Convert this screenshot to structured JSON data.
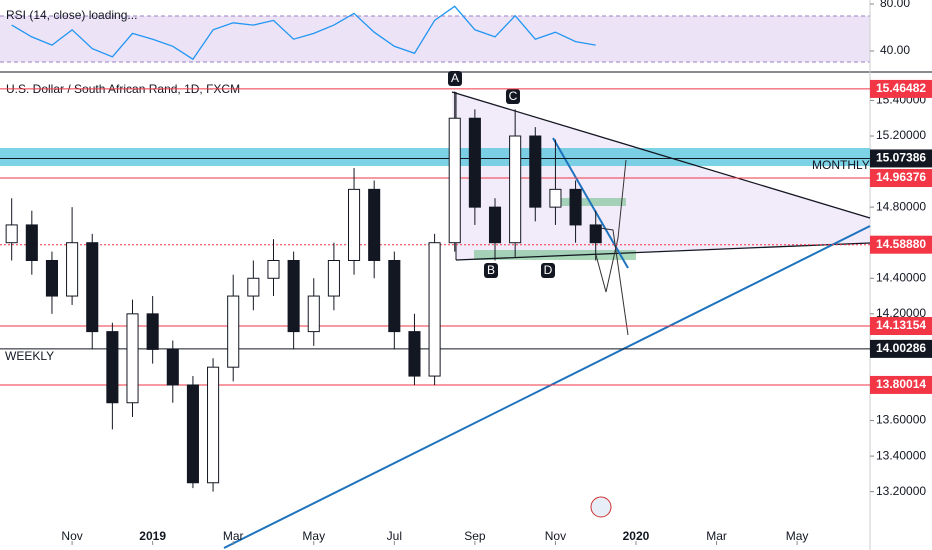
{
  "chart_data": {
    "type": "candlestick",
    "title": "U.S. Dollar / South African Rand, 1D, FXCM",
    "x": [
      -1.5,
      -1,
      -0.5,
      0,
      0.5,
      1,
      1.5,
      2,
      2.5,
      3,
      3.5,
      4,
      4.5,
      5,
      5.5,
      6,
      6.5,
      7,
      7.5,
      8,
      8.5,
      9,
      9.5,
      10,
      10.5,
      11,
      11.5,
      12,
      12.5,
      13
    ],
    "open": [
      14.6,
      14.7,
      14.5,
      14.3,
      14.6,
      14.1,
      13.7,
      14.2,
      14.0,
      13.8,
      13.25,
      13.9,
      14.3,
      14.4,
      14.5,
      14.1,
      14.3,
      14.5,
      14.9,
      14.5,
      14.1,
      13.85,
      14.6,
      15.3,
      14.8,
      14.6,
      15.2,
      14.8,
      14.9,
      14.7
    ],
    "high": [
      14.85,
      14.78,
      14.55,
      14.8,
      14.65,
      14.15,
      14.28,
      14.3,
      14.05,
      13.85,
      13.95,
      14.42,
      14.5,
      14.62,
      14.55,
      14.4,
      14.6,
      15.02,
      14.95,
      14.55,
      14.2,
      14.65,
      15.45,
      15.35,
      14.85,
      15.35,
      15.25,
      15.18,
      14.95,
      14.78
    ],
    "low": [
      14.5,
      14.42,
      14.2,
      14.25,
      14.0,
      13.55,
      13.62,
      13.92,
      13.7,
      13.22,
      13.2,
      13.82,
      14.22,
      14.3,
      14.0,
      14.02,
      14.22,
      14.42,
      14.4,
      14.0,
      13.8,
      13.8,
      14.55,
      14.7,
      14.5,
      14.52,
      14.72,
      14.7,
      14.6,
      14.5
    ],
    "close": [
      14.7,
      14.5,
      14.3,
      14.6,
      14.1,
      13.7,
      14.2,
      14.0,
      13.8,
      13.25,
      13.9,
      14.3,
      14.4,
      14.5,
      14.1,
      14.3,
      14.5,
      14.9,
      14.5,
      14.1,
      13.85,
      14.6,
      15.3,
      14.8,
      14.6,
      15.2,
      14.8,
      14.9,
      14.7,
      14.6
    ],
    "xlim": [
      -1.79,
      19.81
    ],
    "xticks": [
      {
        "value": 0,
        "label": "Nov"
      },
      {
        "value": 2,
        "label": "2019"
      },
      {
        "value": 4,
        "label": "Mar"
      },
      {
        "value": 6,
        "label": "May"
      },
      {
        "value": 8,
        "label": "Jul"
      },
      {
        "value": 10,
        "label": "Sep"
      },
      {
        "value": 12,
        "label": "Nov"
      },
      {
        "value": 14,
        "label": "2020"
      },
      {
        "value": 16,
        "label": "Mar"
      },
      {
        "value": 18,
        "label": "May"
      }
    ],
    "ylim": [
      12.9,
      15.56
    ],
    "yticks": [
      {
        "value": 13.2,
        "label": "13.20000"
      },
      {
        "value": 13.4,
        "label": "13.40000"
      },
      {
        "value": 13.6,
        "label": "13.60000"
      },
      {
        "value": 14.2,
        "label": "14.20000"
      },
      {
        "value": 14.4,
        "label": "14.40000"
      },
      {
        "value": 14.8,
        "label": "14.80000"
      },
      {
        "value": 15.2,
        "label": "15.20000"
      },
      {
        "value": 15.4,
        "label": "15.40000"
      }
    ],
    "levels": [
      {
        "value": 15.46482,
        "color": "#f23645"
      },
      {
        "value": 15.07386,
        "color": "#131722"
      },
      {
        "value": 14.96376,
        "color": "#f23645"
      },
      {
        "value": 14.5888,
        "label": "14.58880",
        "color": "#f23645"
      },
      {
        "value": 14.13154,
        "color": "#f23645"
      },
      {
        "value": 14.00286,
        "color": "#131722"
      },
      {
        "value": 13.80014,
        "color": "#f23645"
      }
    ],
    "annotations": [
      "MONTHLY",
      "WEEKLY",
      "A",
      "B",
      "C",
      "D"
    ],
    "rsi": {
      "label": "RSI (14, close) loading...",
      "color": "#2196f3",
      "values": [
        62,
        52,
        45,
        58,
        42,
        35,
        55,
        50,
        44,
        33,
        58,
        64,
        62,
        66,
        50,
        55,
        62,
        72,
        56,
        44,
        38,
        66,
        78,
        58,
        52,
        70,
        50,
        56,
        48,
        45
      ],
      "ylim": [
        23.8,
        83.4
      ],
      "yticks": [
        {
          "value": 80,
          "label": "80.00"
        },
        {
          "value": 40,
          "label": "40.00"
        }
      ]
    }
  }
}
